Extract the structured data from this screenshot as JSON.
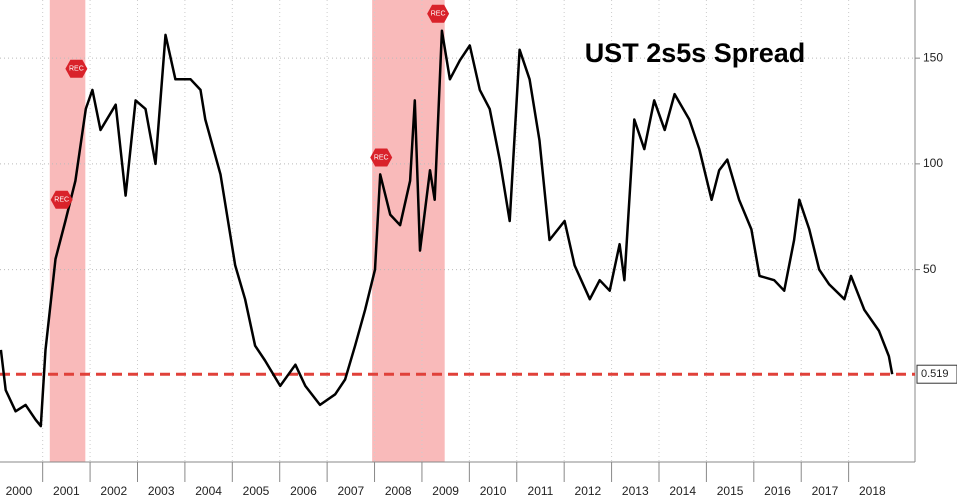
{
  "chart_data": {
    "type": "line",
    "title": "UST 2s5s Spread",
    "x": [
      2000.12,
      2000.22,
      2000.43,
      2000.64,
      2000.85,
      2000.96,
      2001.06,
      2001.27,
      2001.48,
      2001.69,
      2001.91,
      2002.05,
      2002.22,
      2002.54,
      2002.75,
      2002.96,
      2003.17,
      2003.38,
      2003.59,
      2003.8,
      2004.12,
      2004.33,
      2004.43,
      2004.75,
      2005.06,
      2005.27,
      2005.48,
      2005.69,
      2006.01,
      2006.33,
      2006.54,
      2006.85,
      2007.17,
      2007.38,
      2007.59,
      2007.8,
      2008.01,
      2008.12,
      2008.33,
      2008.54,
      2008.75,
      2008.85,
      2008.96,
      2009.17,
      2009.27,
      2009.42,
      2009.59,
      2009.8,
      2010.01,
      2010.22,
      2010.43,
      2010.64,
      2010.85,
      2011.06,
      2011.27,
      2011.48,
      2011.69,
      2012.01,
      2012.22,
      2012.54,
      2012.75,
      2012.96,
      2013.17,
      2013.27,
      2013.48,
      2013.69,
      2013.9,
      2014.12,
      2014.33,
      2014.64,
      2014.85,
      2015.11,
      2015.27,
      2015.44,
      2015.69,
      2015.95,
      2016.12,
      2016.43,
      2016.64,
      2016.85,
      2016.96,
      2017.17,
      2017.38,
      2017.59,
      2017.91,
      2018.05,
      2018.33,
      2018.64,
      2018.85,
      2018.92
    ],
    "values": [
      12,
      -7,
      -17,
      -14,
      -21,
      -24,
      12,
      55,
      73,
      92,
      126,
      135,
      116,
      128,
      85,
      130,
      126,
      100,
      161,
      140,
      140,
      135,
      121,
      95,
      52,
      36,
      14,
      7,
      -5,
      5,
      -5,
      -14,
      -9,
      -2,
      14,
      31,
      50,
      95,
      76,
      71,
      92,
      130,
      59,
      97,
      83,
      163,
      140,
      149,
      156,
      135,
      126,
      102,
      73,
      154,
      140,
      111,
      64,
      73,
      52,
      36,
      45,
      40,
      62,
      45,
      121,
      107,
      130,
      116,
      133,
      121,
      107,
      83,
      97,
      102,
      83,
      69,
      47,
      45,
      40,
      64,
      83,
      69,
      50,
      43,
      36,
      47,
      31,
      21,
      9,
      0.519
    ],
    "color": "#000000",
    "xlim": [
      2000.1,
      2019.4
    ],
    "ylim": [
      -41,
      177.5
    ],
    "xticks": [
      2000,
      2001,
      2002,
      2003,
      2004,
      2005,
      2006,
      2007,
      2008,
      2009,
      2010,
      2011,
      2012,
      2013,
      2014,
      2015,
      2016,
      2017,
      2018
    ],
    "yticks": [
      50,
      100,
      150
    ],
    "grid": true,
    "shaded_regions": [
      [
        2001.15,
        2001.9
      ],
      [
        2007.95,
        2009.48
      ]
    ],
    "shade_color": "#f7a3a3",
    "reference_line": {
      "value": 0.519,
      "color": "#e0413a"
    },
    "annotations": [
      {
        "text": "REC",
        "x": 2001.38,
        "y": 83
      },
      {
        "text": "REC",
        "x": 2001.69,
        "y": 145
      },
      {
        "text": "REC",
        "x": 2008.12,
        "y": 103
      },
      {
        "text": "REC",
        "x": 2009.32,
        "y": 171
      }
    ]
  }
}
